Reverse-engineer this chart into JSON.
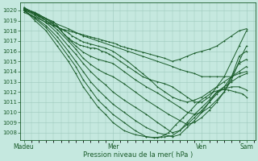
{
  "xlabel": "Pression niveau de la mer( hPa )",
  "xtick_labels": [
    "Madeu",
    "Mer",
    "Ven",
    "Sam"
  ],
  "xtick_positions": [
    0,
    48,
    96,
    120
  ],
  "xlim": [
    -2,
    125
  ],
  "ylim": [
    1007.3,
    1020.8
  ],
  "yticks": [
    1008,
    1009,
    1010,
    1011,
    1012,
    1013,
    1014,
    1015,
    1016,
    1017,
    1018,
    1019,
    1020
  ],
  "bg_color": "#c5e8df",
  "line_color": "#1a5c2a",
  "grid_color": "#9dc8bc",
  "lines": [
    [
      0,
      1020.1,
      4,
      1019.9,
      8,
      1019.6,
      12,
      1019.2,
      16,
      1018.9,
      18,
      1018.5,
      20,
      1018.0,
      22,
      1017.6,
      24,
      1017.3,
      26,
      1017.0,
      28,
      1016.8,
      30,
      1016.6,
      32,
      1016.5,
      34,
      1016.4,
      36,
      1016.3,
      38,
      1016.3,
      40,
      1016.2,
      42,
      1016.0,
      44,
      1015.9,
      46,
      1015.7,
      48,
      1015.5,
      52,
      1015.0,
      56,
      1014.5,
      60,
      1014.0,
      64,
      1013.5,
      68,
      1013.2,
      72,
      1013.0,
      76,
      1012.8,
      80,
      1012.5,
      84,
      1012.0,
      88,
      1011.5,
      92,
      1011.0,
      96,
      1011.0,
      100,
      1011.5,
      104,
      1012.5,
      108,
      1013.5,
      112,
      1015.0,
      116,
      1016.5,
      120,
      1018.0
    ],
    [
      0,
      1020.2,
      6,
      1019.8,
      12,
      1019.2,
      18,
      1018.4,
      24,
      1017.2,
      28,
      1016.5,
      32,
      1015.9,
      36,
      1015.5,
      40,
      1015.2,
      44,
      1015.0,
      48,
      1014.8,
      54,
      1014.0,
      60,
      1013.2,
      66,
      1012.5,
      72,
      1011.9,
      78,
      1011.2,
      84,
      1010.5,
      88,
      1010.0,
      92,
      1009.8,
      96,
      1010.0,
      100,
      1010.5,
      104,
      1011.2,
      108,
      1012.0,
      112,
      1013.2,
      116,
      1015.0,
      120,
      1016.5
    ],
    [
      0,
      1020.3,
      6,
      1019.7,
      12,
      1019.0,
      18,
      1018.1,
      24,
      1017.0,
      28,
      1016.2,
      32,
      1015.3,
      36,
      1014.7,
      40,
      1014.2,
      44,
      1013.8,
      48,
      1013.5,
      54,
      1012.8,
      60,
      1012.0,
      66,
      1011.2,
      72,
      1010.5,
      78,
      1009.8,
      84,
      1009.2,
      88,
      1008.8,
      92,
      1009.0,
      96,
      1009.5,
      100,
      1010.2,
      104,
      1011.0,
      108,
      1012.0,
      112,
      1013.5,
      116,
      1015.5,
      120,
      1016.0
    ],
    [
      0,
      1020.1,
      6,
      1019.5,
      12,
      1018.8,
      18,
      1017.8,
      24,
      1016.5,
      28,
      1015.7,
      32,
      1014.8,
      36,
      1014.0,
      40,
      1013.3,
      44,
      1012.7,
      48,
      1012.0,
      54,
      1011.2,
      60,
      1010.5,
      66,
      1009.8,
      72,
      1009.0,
      76,
      1008.5,
      80,
      1008.0,
      84,
      1008.2,
      88,
      1008.8,
      92,
      1009.5,
      96,
      1010.2,
      100,
      1011.0,
      104,
      1011.8,
      108,
      1012.5,
      112,
      1013.5,
      116,
      1014.8,
      120,
      1015.2
    ],
    [
      0,
      1020.0,
      6,
      1019.3,
      12,
      1018.5,
      18,
      1017.4,
      24,
      1016.0,
      28,
      1015.0,
      32,
      1014.0,
      36,
      1013.0,
      40,
      1012.2,
      44,
      1011.5,
      48,
      1010.8,
      54,
      1010.0,
      60,
      1009.2,
      66,
      1008.5,
      72,
      1008.0,
      76,
      1007.8,
      80,
      1007.6,
      84,
      1007.8,
      88,
      1008.5,
      92,
      1009.2,
      96,
      1010.0,
      100,
      1011.0,
      104,
      1012.0,
      108,
      1012.5,
      112,
      1013.0,
      116,
      1013.5,
      120,
      1013.8
    ],
    [
      0,
      1020.0,
      6,
      1019.2,
      12,
      1018.3,
      18,
      1017.0,
      24,
      1015.5,
      28,
      1014.5,
      32,
      1013.2,
      36,
      1012.2,
      40,
      1011.2,
      44,
      1010.5,
      48,
      1009.8,
      54,
      1009.0,
      60,
      1008.2,
      66,
      1007.6,
      72,
      1007.5,
      76,
      1007.6,
      80,
      1007.7,
      84,
      1008.2,
      88,
      1009.0,
      92,
      1009.8,
      96,
      1010.5,
      100,
      1011.2,
      104,
      1012.0,
      108,
      1012.3,
      112,
      1012.5,
      116,
      1012.5,
      120,
      1012.2
    ],
    [
      0,
      1020.1,
      6,
      1019.0,
      12,
      1018.0,
      18,
      1016.5,
      24,
      1015.0,
      28,
      1013.8,
      32,
      1012.5,
      36,
      1011.5,
      40,
      1010.5,
      44,
      1009.8,
      48,
      1009.0,
      54,
      1008.2,
      60,
      1007.8,
      66,
      1007.6,
      70,
      1007.5,
      74,
      1007.6,
      78,
      1008.0,
      82,
      1008.8,
      86,
      1009.5,
      90,
      1010.2,
      94,
      1011.0,
      98,
      1011.5,
      102,
      1012.0,
      106,
      1012.2,
      110,
      1012.2,
      114,
      1012.0,
      118,
      1011.8,
      120,
      1011.5
    ],
    [
      0,
      1020.2,
      8,
      1019.5,
      16,
      1018.8,
      24,
      1018.2,
      32,
      1017.5,
      40,
      1017.0,
      48,
      1016.5,
      56,
      1016.0,
      64,
      1015.5,
      72,
      1015.0,
      80,
      1014.5,
      84,
      1014.2,
      88,
      1014.0,
      92,
      1013.8,
      96,
      1013.5,
      100,
      1013.5,
      104,
      1013.5,
      108,
      1013.5,
      112,
      1013.5,
      116,
      1013.8,
      120,
      1014.0
    ],
    [
      0,
      1019.8,
      4,
      1019.5,
      8,
      1019.2,
      12,
      1018.8,
      16,
      1018.5,
      20,
      1018.2,
      22,
      1018.0,
      24,
      1017.8,
      26,
      1017.5,
      28,
      1017.3,
      30,
      1017.1,
      32,
      1016.9,
      34,
      1016.8,
      36,
      1016.7,
      40,
      1016.5,
      44,
      1016.3,
      48,
      1016.0,
      52,
      1015.5,
      56,
      1015.0,
      60,
      1014.4,
      64,
      1013.8,
      68,
      1013.2,
      72,
      1012.5,
      76,
      1012.0,
      80,
      1011.5,
      84,
      1011.2,
      88,
      1011.0,
      92,
      1011.2,
      96,
      1011.5,
      100,
      1012.0,
      104,
      1012.5,
      108,
      1013.0,
      112,
      1013.5,
      116,
      1014.0,
      120,
      1014.5
    ],
    [
      0,
      1020.0,
      4,
      1019.8,
      6,
      1019.6,
      8,
      1019.4,
      10,
      1019.2,
      12,
      1019.0,
      14,
      1018.8,
      16,
      1018.6,
      18,
      1018.4,
      20,
      1018.2,
      22,
      1018.1,
      24,
      1018.0,
      26,
      1017.9,
      28,
      1017.8,
      30,
      1017.7,
      32,
      1017.6,
      34,
      1017.5,
      36,
      1017.4,
      38,
      1017.3,
      40,
      1017.2,
      42,
      1017.1,
      44,
      1017.0,
      46,
      1016.9,
      48,
      1016.8,
      50,
      1016.7,
      52,
      1016.5,
      54,
      1016.4,
      56,
      1016.3,
      58,
      1016.2,
      60,
      1016.1,
      64,
      1015.9,
      68,
      1015.7,
      72,
      1015.5,
      76,
      1015.3,
      80,
      1015.0,
      84,
      1015.2,
      88,
      1015.5,
      92,
      1015.8,
      96,
      1016.0,
      100,
      1016.2,
      104,
      1016.5,
      108,
      1017.0,
      112,
      1017.5,
      116,
      1018.0,
      120,
      1018.2
    ]
  ],
  "marker": "+",
  "markersize": 2,
  "linewidth": 0.7
}
